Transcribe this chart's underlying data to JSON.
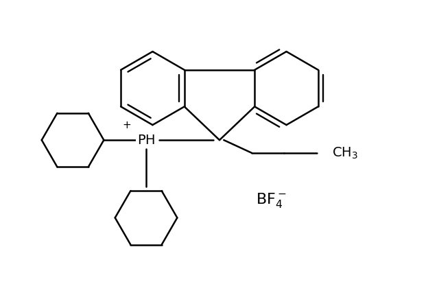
{
  "bg_color": "#ffffff",
  "line_color": "#000000",
  "line_width": 1.8,
  "figsize": [
    6.4,
    4.46
  ],
  "dpi": 100
}
